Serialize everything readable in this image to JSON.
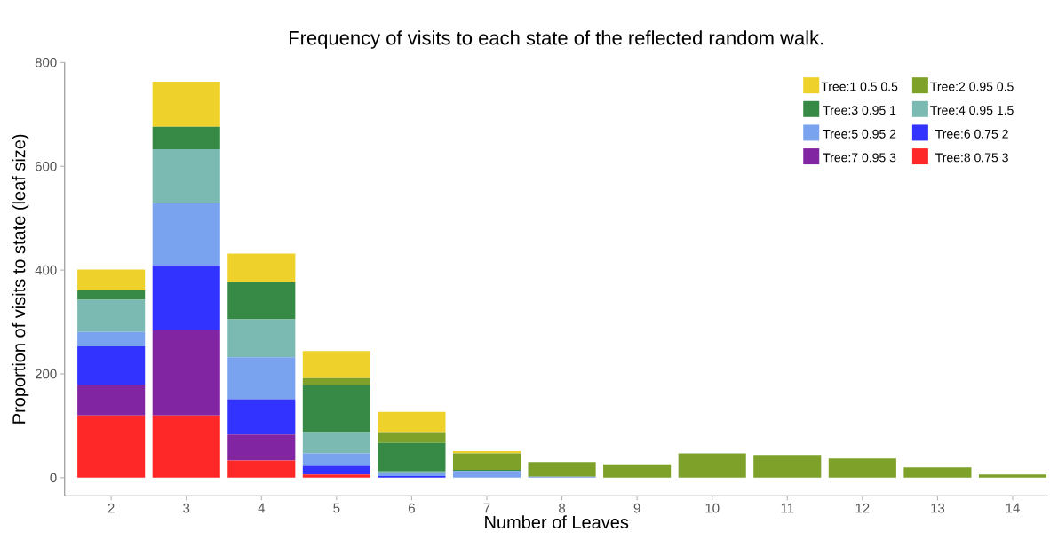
{
  "chart_data": {
    "type": "bar",
    "stacked": true,
    "title": "Frequency of visits to each state of the reflected random walk.",
    "xlabel": "Number of Leaves",
    "ylabel": "Proportion of visits to state (leaf size)",
    "categories": [
      "2",
      "3",
      "4",
      "5",
      "6",
      "7",
      "8",
      "9",
      "10",
      "11",
      "12",
      "13",
      "14"
    ],
    "ylim": [
      -35,
      800
    ],
    "yticks": [
      0,
      200,
      400,
      600,
      800
    ],
    "grid": false,
    "legend": "top right",
    "series": [
      {
        "name": "Tree:8 0.75 3",
        "color": "#ff2828",
        "values": [
          120,
          120,
          33,
          6,
          0,
          0,
          0,
          0,
          0,
          0,
          0,
          0,
          0
        ]
      },
      {
        "name": "Tree:7 0.95 3",
        "color": "#8125a2",
        "values": [
          59,
          164,
          50,
          0,
          0,
          0,
          0,
          0,
          0,
          0,
          0,
          0,
          0
        ]
      },
      {
        "name": "Tree:6 0.75 2",
        "color": "#3333ff",
        "values": [
          74,
          125,
          68,
          17,
          3,
          0,
          0,
          0,
          0,
          0,
          0,
          0,
          0
        ]
      },
      {
        "name": "Tree:5 0.95 2",
        "color": "#7aa3ef",
        "values": [
          28,
          120,
          81,
          24,
          6,
          13,
          2,
          0,
          0,
          0,
          0,
          0,
          0
        ]
      },
      {
        "name": "Tree:4 0.95 1.5",
        "color": "#7bbab2",
        "values": [
          62,
          104,
          73,
          41,
          3,
          0,
          0,
          0,
          0,
          0,
          0,
          0,
          0
        ]
      },
      {
        "name": "Tree:3 0.95 1",
        "color": "#378a45",
        "values": [
          18,
          43,
          71,
          90,
          55,
          2,
          0,
          0,
          0,
          0,
          0,
          0,
          0
        ]
      },
      {
        "name": "Tree:2 0.95 0.5",
        "color": "#7ea12a",
        "values": [
          0,
          0,
          0,
          14,
          21,
          32,
          28,
          26,
          47,
          44,
          37,
          20,
          6
        ]
      },
      {
        "name": "Tree:1 0.5 0.5",
        "color": "#eed12a",
        "values": [
          40,
          87,
          56,
          52,
          39,
          4,
          0,
          0,
          0,
          0,
          0,
          0,
          0
        ]
      }
    ]
  }
}
